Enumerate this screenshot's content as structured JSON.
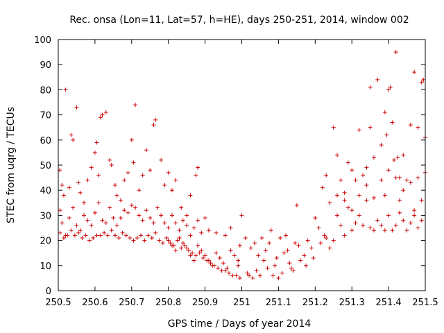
{
  "chart_data": {
    "type": "scatter",
    "title": "Rec. onsa (Lon=11, Lat=57, h=HE), days 250-251, 2014, window 002",
    "xlabel": "GPS time / Days of year 2014",
    "ylabel": "STEC from uqrg / TECUs",
    "xlim": [
      250.5,
      251.5
    ],
    "ylim": [
      0,
      100
    ],
    "xticks": [
      250.5,
      250.6,
      250.7,
      250.8,
      250.9,
      251.0,
      251.1,
      251.2,
      251.3,
      251.4,
      251.5
    ],
    "xtick_labels": [
      "250.5",
      "250.6",
      "250.7",
      "250.8",
      "250.9",
      "251",
      "251.1",
      "251.2",
      "251.3",
      "251.4",
      "251.5"
    ],
    "yticks": [
      0,
      10,
      20,
      30,
      40,
      50,
      60,
      70,
      80,
      90,
      100
    ],
    "ytick_labels": [
      "0",
      "10",
      "20",
      "30",
      "40",
      "50",
      "60",
      "70",
      "80",
      "90",
      "100"
    ],
    "grid": false,
    "marker": "plus",
    "color": "#cc0000",
    "points": [
      [
        250.504,
        48
      ],
      [
        250.51,
        42
      ],
      [
        250.515,
        38
      ],
      [
        250.52,
        80
      ],
      [
        250.53,
        41
      ],
      [
        250.535,
        62
      ],
      [
        250.54,
        60
      ],
      [
        250.55,
        73
      ],
      [
        250.555,
        43
      ],
      [
        250.56,
        39
      ],
      [
        250.57,
        35
      ],
      [
        250.58,
        44
      ],
      [
        250.59,
        49
      ],
      [
        250.6,
        55
      ],
      [
        250.605,
        59
      ],
      [
        250.61,
        46
      ],
      [
        250.615,
        69
      ],
      [
        250.62,
        70
      ],
      [
        250.63,
        71
      ],
      [
        250.64,
        52
      ],
      [
        250.645,
        50
      ],
      [
        250.655,
        42
      ],
      [
        250.66,
        38
      ],
      [
        250.67,
        36
      ],
      [
        250.68,
        44
      ],
      [
        250.69,
        47
      ],
      [
        250.7,
        60
      ],
      [
        250.705,
        51
      ],
      [
        250.71,
        74
      ],
      [
        250.72,
        40
      ],
      [
        250.73,
        46
      ],
      [
        250.74,
        56
      ],
      [
        250.75,
        48
      ],
      [
        250.76,
        66
      ],
      [
        250.765,
        68
      ],
      [
        250.78,
        52
      ],
      [
        250.79,
        42
      ],
      [
        250.8,
        47
      ],
      [
        250.81,
        40
      ],
      [
        250.82,
        44
      ],
      [
        250.835,
        33
      ],
      [
        250.85,
        30
      ],
      [
        250.86,
        38
      ],
      [
        250.875,
        46
      ],
      [
        250.88,
        49
      ],
      [
        250.505,
        32
      ],
      [
        250.51,
        27
      ],
      [
        250.52,
        22
      ],
      [
        250.53,
        29
      ],
      [
        250.54,
        33
      ],
      [
        250.55,
        26
      ],
      [
        250.56,
        24
      ],
      [
        250.57,
        30
      ],
      [
        250.58,
        28
      ],
      [
        250.59,
        26
      ],
      [
        250.6,
        31
      ],
      [
        250.61,
        35
      ],
      [
        250.62,
        28
      ],
      [
        250.63,
        27
      ],
      [
        250.64,
        33
      ],
      [
        250.65,
        29
      ],
      [
        250.66,
        26
      ],
      [
        250.67,
        29
      ],
      [
        250.68,
        32
      ],
      [
        250.69,
        31
      ],
      [
        250.7,
        34
      ],
      [
        250.71,
        33
      ],
      [
        250.72,
        30
      ],
      [
        250.73,
        28
      ],
      [
        250.74,
        32
      ],
      [
        250.75,
        29
      ],
      [
        250.76,
        27
      ],
      [
        250.77,
        33
      ],
      [
        250.78,
        30
      ],
      [
        250.79,
        27
      ],
      [
        250.8,
        25
      ],
      [
        250.81,
        30
      ],
      [
        250.82,
        27
      ],
      [
        250.83,
        24
      ],
      [
        250.84,
        28
      ],
      [
        250.85,
        26
      ],
      [
        250.86,
        22
      ],
      [
        250.87,
        25
      ],
      [
        250.88,
        28
      ],
      [
        250.89,
        23
      ],
      [
        250.9,
        29
      ],
      [
        250.91,
        24
      ],
      [
        250.505,
        23
      ],
      [
        250.515,
        21
      ],
      [
        250.525,
        22
      ],
      [
        250.535,
        24
      ],
      [
        250.545,
        22
      ],
      [
        250.555,
        23
      ],
      [
        250.565,
        21
      ],
      [
        250.575,
        22
      ],
      [
        250.585,
        20
      ],
      [
        250.595,
        21
      ],
      [
        250.605,
        22
      ],
      [
        250.615,
        22
      ],
      [
        250.625,
        23
      ],
      [
        250.635,
        22
      ],
      [
        250.645,
        24
      ],
      [
        250.655,
        22
      ],
      [
        250.665,
        21
      ],
      [
        250.675,
        23
      ],
      [
        250.685,
        22
      ],
      [
        250.695,
        21
      ],
      [
        250.705,
        20
      ],
      [
        250.715,
        21
      ],
      [
        250.725,
        22
      ],
      [
        250.735,
        20
      ],
      [
        250.745,
        22
      ],
      [
        250.755,
        21
      ],
      [
        250.765,
        23
      ],
      [
        250.775,
        20
      ],
      [
        250.785,
        19
      ],
      [
        250.795,
        21
      ],
      [
        250.805,
        19
      ],
      [
        250.815,
        18
      ],
      [
        250.825,
        20
      ],
      [
        250.835,
        17
      ],
      [
        250.845,
        18
      ],
      [
        250.855,
        16
      ],
      [
        250.865,
        15
      ],
      [
        250.875,
        14
      ],
      [
        250.885,
        15
      ],
      [
        250.895,
        13
      ],
      [
        250.905,
        12
      ],
      [
        250.915,
        11
      ],
      [
        250.925,
        10
      ],
      [
        250.935,
        9
      ],
      [
        250.945,
        8
      ],
      [
        250.955,
        8
      ],
      [
        250.965,
        7
      ],
      [
        250.975,
        6
      ],
      [
        250.985,
        6
      ],
      [
        250.995,
        5
      ],
      [
        250.8,
        20
      ],
      [
        250.81,
        18
      ],
      [
        250.82,
        16
      ],
      [
        250.83,
        21
      ],
      [
        250.84,
        19
      ],
      [
        250.85,
        17
      ],
      [
        250.86,
        14
      ],
      [
        250.87,
        12
      ],
      [
        250.88,
        18
      ],
      [
        250.89,
        16
      ],
      [
        250.9,
        14
      ],
      [
        250.91,
        12
      ],
      [
        250.92,
        10
      ],
      [
        250.93,
        15
      ],
      [
        250.94,
        13
      ],
      [
        250.95,
        11
      ],
      [
        250.96,
        9
      ],
      [
        250.97,
        16
      ],
      [
        250.98,
        14
      ],
      [
        250.99,
        12
      ],
      [
        250.995,
        18
      ],
      [
        251.0,
        30
      ],
      [
        250.97,
        25
      ],
      [
        250.93,
        23
      ],
      [
        250.955,
        22
      ],
      [
        250.99,
        10
      ],
      [
        251.01,
        21
      ],
      [
        251.015,
        7
      ],
      [
        251.02,
        6
      ],
      [
        251.03,
        5
      ],
      [
        251.04,
        8
      ],
      [
        251.05,
        6
      ],
      [
        251.06,
        12
      ],
      [
        251.07,
        9
      ],
      [
        251.08,
        24
      ],
      [
        251.085,
        6
      ],
      [
        251.09,
        10
      ],
      [
        251.1,
        5
      ],
      [
        251.11,
        7
      ],
      [
        251.12,
        22
      ],
      [
        251.13,
        11
      ],
      [
        251.14,
        8
      ],
      [
        251.15,
        34
      ],
      [
        251.16,
        12
      ],
      [
        251.17,
        14
      ],
      [
        251.18,
        20
      ],
      [
        251.19,
        17
      ],
      [
        251.2,
        29
      ],
      [
        251.21,
        25
      ],
      [
        251.22,
        41
      ],
      [
        251.025,
        17
      ],
      [
        251.045,
        14
      ],
      [
        251.065,
        16
      ],
      [
        251.095,
        13
      ],
      [
        251.115,
        15
      ],
      [
        251.135,
        9
      ],
      [
        251.155,
        18
      ],
      [
        251.175,
        10
      ],
      [
        251.195,
        13
      ],
      [
        251.215,
        19
      ],
      [
        251.225,
        22
      ],
      [
        251.035,
        19
      ],
      [
        251.055,
        21
      ],
      [
        251.075,
        19
      ],
      [
        251.105,
        21
      ],
      [
        251.125,
        16
      ],
      [
        251.145,
        19
      ],
      [
        251.23,
        21
      ],
      [
        251.24,
        17
      ],
      [
        251.25,
        20
      ],
      [
        251.26,
        30
      ],
      [
        251.27,
        26
      ],
      [
        251.28,
        22
      ],
      [
        251.29,
        33
      ],
      [
        251.3,
        24
      ],
      [
        251.31,
        27
      ],
      [
        251.32,
        30
      ],
      [
        251.33,
        26
      ],
      [
        251.34,
        36
      ],
      [
        251.35,
        25
      ],
      [
        251.36,
        24
      ],
      [
        251.37,
        28
      ],
      [
        251.38,
        26
      ],
      [
        251.39,
        24
      ],
      [
        251.4,
        30
      ],
      [
        251.41,
        24
      ],
      [
        251.42,
        26
      ],
      [
        251.43,
        31
      ],
      [
        251.44,
        28
      ],
      [
        251.45,
        24
      ],
      [
        251.46,
        27
      ],
      [
        251.47,
        30
      ],
      [
        251.48,
        25
      ],
      [
        251.49,
        28
      ],
      [
        251.23,
        46
      ],
      [
        251.25,
        65
      ],
      [
        251.26,
        54
      ],
      [
        251.27,
        44
      ],
      [
        251.28,
        39
      ],
      [
        251.29,
        51
      ],
      [
        251.3,
        48
      ],
      [
        251.31,
        44
      ],
      [
        251.32,
        64
      ],
      [
        251.33,
        46
      ],
      [
        251.34,
        49
      ],
      [
        251.35,
        65
      ],
      [
        251.36,
        53
      ],
      [
        251.37,
        84
      ],
      [
        251.38,
        58
      ],
      [
        251.39,
        71
      ],
      [
        251.395,
        62
      ],
      [
        251.4,
        80
      ],
      [
        251.405,
        81
      ],
      [
        251.41,
        67
      ],
      [
        251.415,
        52
      ],
      [
        251.42,
        95
      ],
      [
        251.425,
        53
      ],
      [
        251.43,
        45
      ],
      [
        251.44,
        54
      ],
      [
        251.45,
        44
      ],
      [
        251.46,
        66
      ],
      [
        251.47,
        87
      ],
      [
        251.48,
        65
      ],
      [
        251.49,
        83
      ],
      [
        251.495,
        84
      ],
      [
        251.5,
        61
      ],
      [
        251.24,
        35
      ],
      [
        251.26,
        38
      ],
      [
        251.28,
        36
      ],
      [
        251.3,
        32
      ],
      [
        251.32,
        38
      ],
      [
        251.34,
        42
      ],
      [
        251.36,
        37
      ],
      [
        251.38,
        44
      ],
      [
        251.4,
        48
      ],
      [
        251.42,
        45
      ],
      [
        251.44,
        40
      ],
      [
        251.46,
        43
      ],
      [
        251.48,
        45
      ],
      [
        251.5,
        47
      ],
      [
        251.35,
        81
      ],
      [
        251.39,
        38
      ],
      [
        251.43,
        36
      ],
      [
        251.47,
        32
      ],
      [
        251.49,
        36
      ]
    ]
  }
}
